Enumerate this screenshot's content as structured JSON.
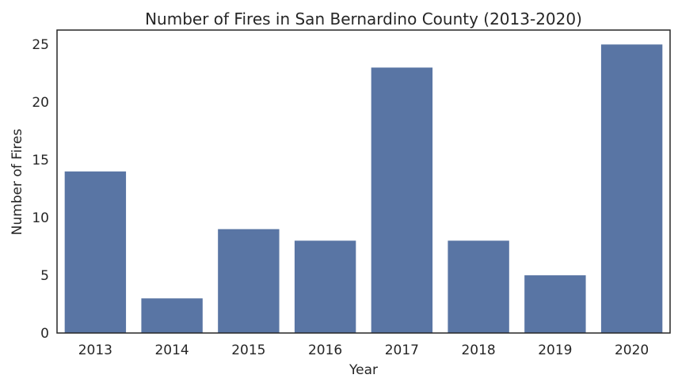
{
  "chart_data": {
    "type": "bar",
    "title": "Number of Fires in San Bernardino County (2013-2020)",
    "xlabel": "Year",
    "ylabel": "Number of Fires",
    "categories": [
      "2013",
      "2014",
      "2015",
      "2016",
      "2017",
      "2018",
      "2019",
      "2020"
    ],
    "values": [
      14,
      3,
      9,
      8,
      23,
      8,
      5,
      25
    ],
    "ylim": [
      0,
      26.25
    ],
    "yticks": [
      0,
      5,
      10,
      15,
      20,
      25
    ],
    "grid": false,
    "bar_color": "#5975a4",
    "axis_color": "#262626"
  }
}
